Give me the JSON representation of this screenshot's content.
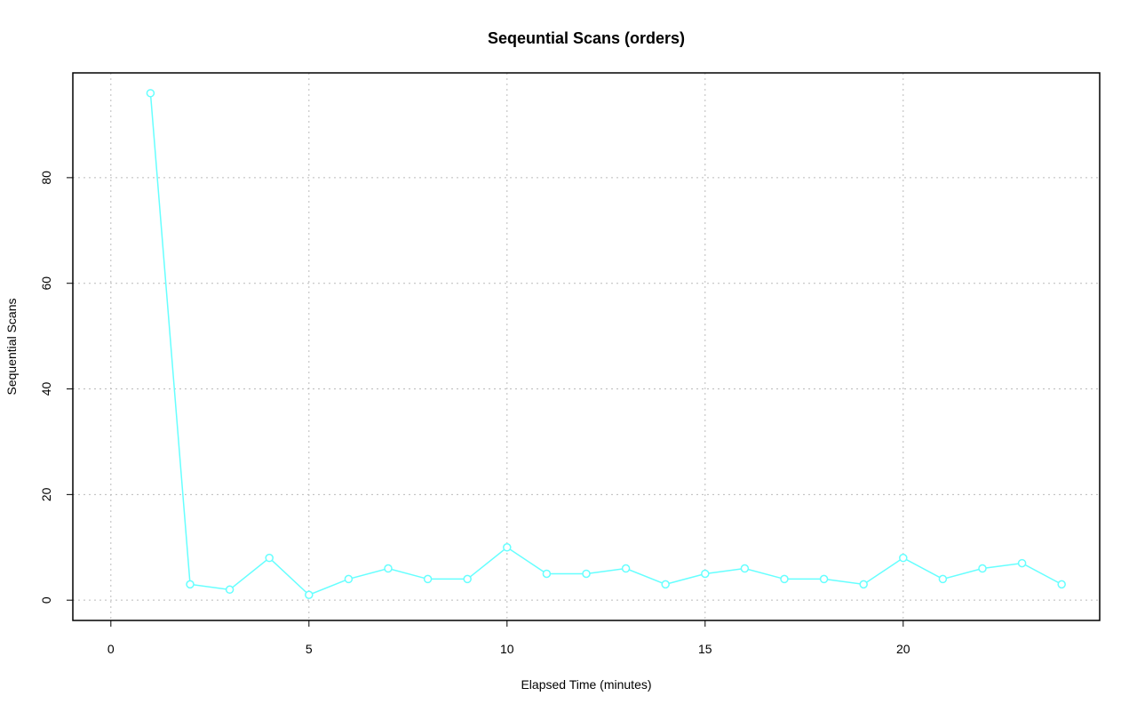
{
  "chart_data": {
    "type": "line",
    "title": "Seqeuntial Scans (orders)",
    "x_label": "Elapsed Time (minutes)",
    "y_label": "Sequential Scans",
    "x": [
      1,
      2,
      3,
      4,
      5,
      6,
      7,
      8,
      9,
      10,
      11,
      12,
      13,
      14,
      15,
      16,
      17,
      18,
      19,
      20,
      21,
      22,
      23,
      24
    ],
    "series": [
      {
        "name": "orders",
        "color": "#66ffff",
        "values": [
          96,
          3,
          2,
          8,
          1,
          4,
          6,
          4,
          4,
          10,
          5,
          5,
          6,
          3,
          5,
          6,
          4,
          4,
          3,
          8,
          4,
          6,
          7,
          3
        ]
      }
    ],
    "xlim": [
      -0.96,
      24.96
    ],
    "xticks": [
      0,
      5,
      10,
      15,
      20
    ],
    "ylim": [
      -3.84,
      99.84
    ],
    "yticks": [
      0,
      20,
      40,
      60,
      80
    ],
    "grid": true
  }
}
